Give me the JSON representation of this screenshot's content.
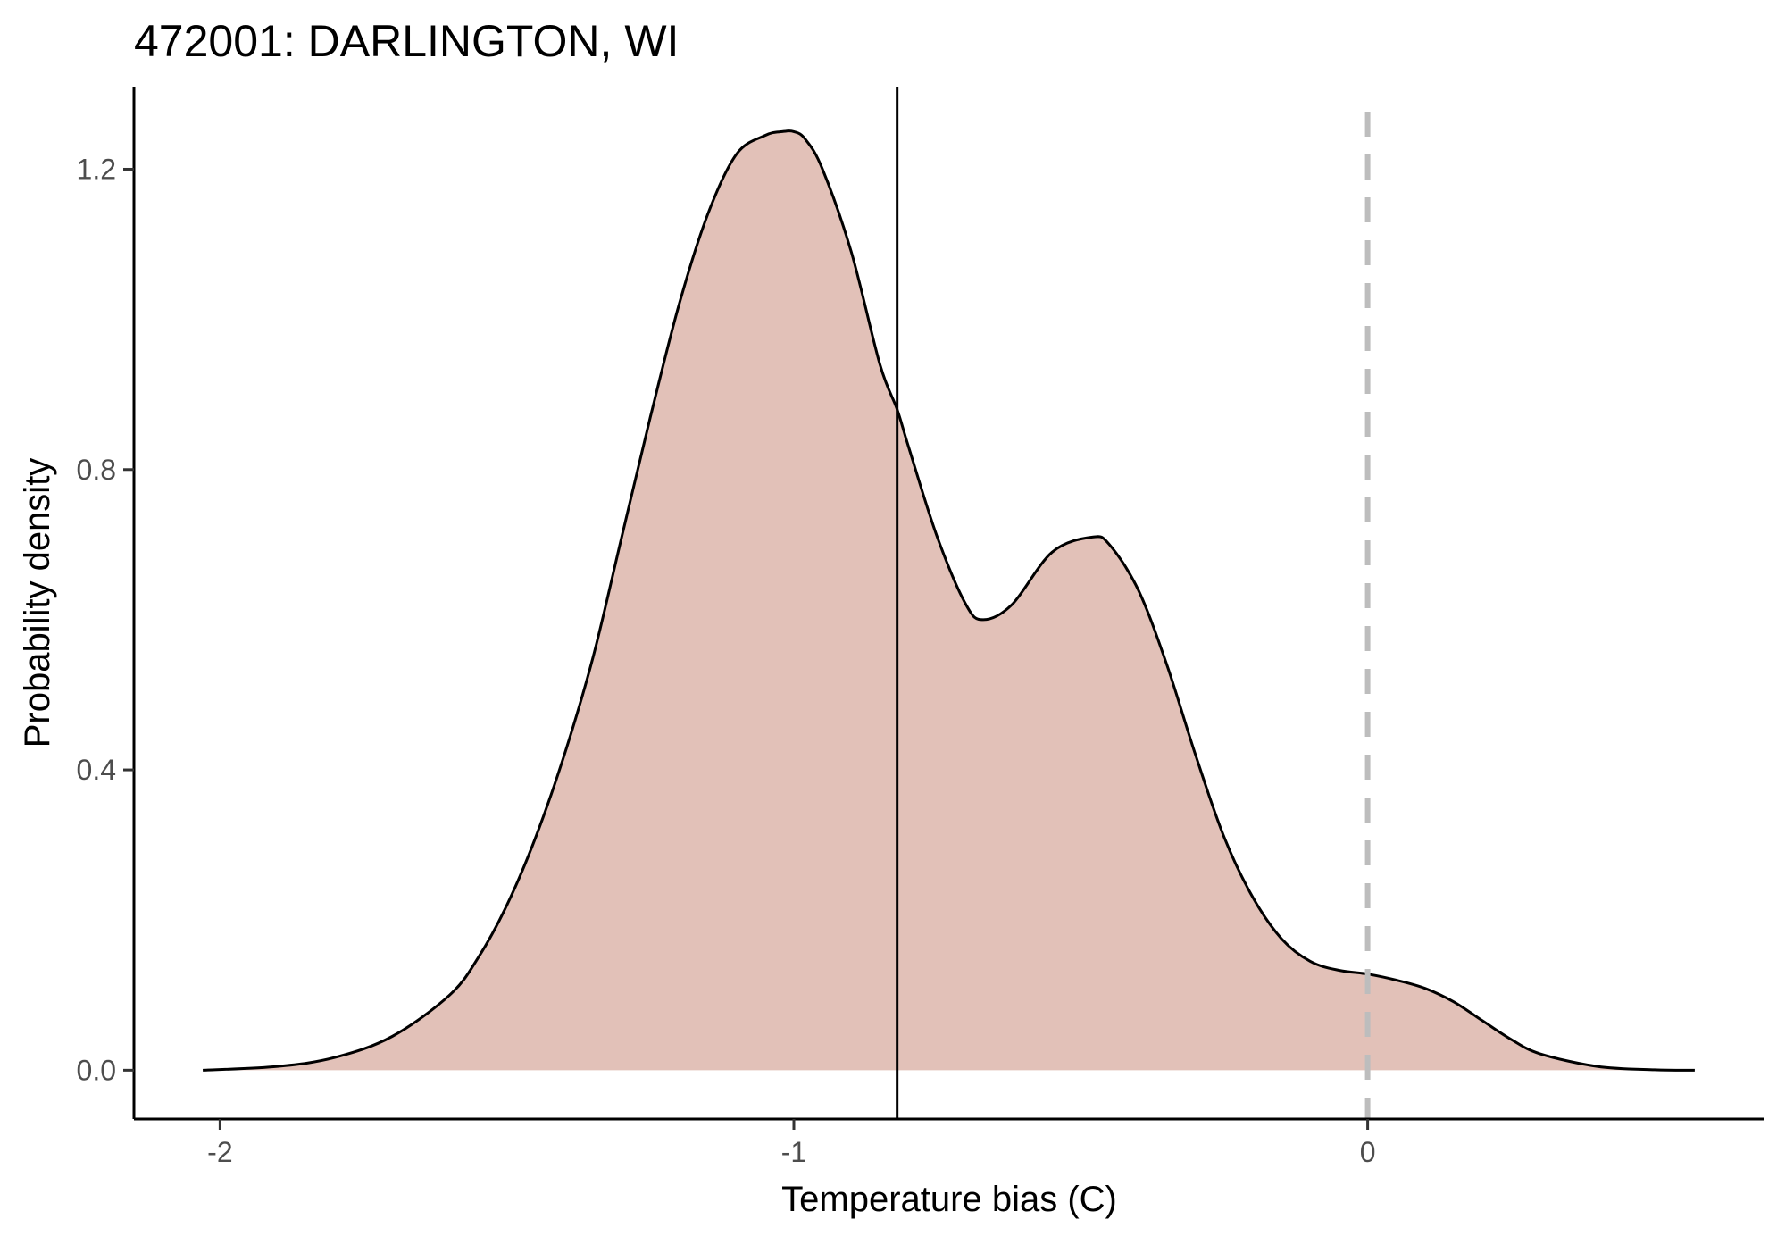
{
  "chart_data": {
    "type": "area",
    "title": "472001: DARLINGTON, WI",
    "xlabel": "Temperature bias (C)",
    "ylabel": "Probability density",
    "xlim": [
      -2.15,
      0.69
    ],
    "ylim": [
      -0.065,
      1.31
    ],
    "x_ticks": [
      {
        "value": -2,
        "label": "-2"
      },
      {
        "value": -1,
        "label": "-1"
      },
      {
        "value": 0,
        "label": "0"
      }
    ],
    "y_ticks": [
      {
        "value": 0.0,
        "label": "0.0"
      },
      {
        "value": 0.4,
        "label": "0.4"
      },
      {
        "value": 0.8,
        "label": "0.8"
      },
      {
        "value": 1.2,
        "label": "1.2"
      }
    ],
    "grid": false,
    "fill_color": "#e2c1b8",
    "line_color": "#000000",
    "reference_lines": [
      {
        "orientation": "vertical",
        "x": -0.82,
        "style": "solid",
        "color": "#000000"
      },
      {
        "orientation": "vertical",
        "x": 0,
        "style": "dashed",
        "color": "#bdbdbd"
      }
    ],
    "series": [
      {
        "x": [
          -2.03,
          -1.9,
          -1.8,
          -1.7,
          -1.6,
          -1.55,
          -1.5,
          -1.45,
          -1.4,
          -1.35,
          -1.3,
          -1.25,
          -1.2,
          -1.15,
          -1.1,
          -1.05,
          -1.02,
          -1.0,
          -0.98,
          -0.95,
          -0.9,
          -0.85,
          -0.82,
          -0.8,
          -0.75,
          -0.7,
          -0.67,
          -0.62,
          -0.55,
          -0.48,
          -0.45,
          -0.4,
          -0.35,
          -0.3,
          -0.25,
          -0.2,
          -0.15,
          -0.1,
          -0.05,
          0.0,
          0.05,
          0.1,
          0.15,
          0.2,
          0.25,
          0.3,
          0.4,
          0.5,
          0.57
        ],
        "y": [
          0.0,
          0.005,
          0.017,
          0.045,
          0.1,
          0.15,
          0.22,
          0.31,
          0.42,
          0.55,
          0.71,
          0.87,
          1.02,
          1.14,
          1.22,
          1.245,
          1.25,
          1.25,
          1.24,
          1.2,
          1.09,
          0.94,
          0.88,
          0.83,
          0.71,
          0.62,
          0.6,
          0.62,
          0.69,
          0.71,
          0.7,
          0.64,
          0.54,
          0.42,
          0.31,
          0.23,
          0.175,
          0.145,
          0.133,
          0.128,
          0.12,
          0.109,
          0.091,
          0.066,
          0.041,
          0.022,
          0.005,
          0.0005,
          0.0
        ]
      }
    ]
  }
}
